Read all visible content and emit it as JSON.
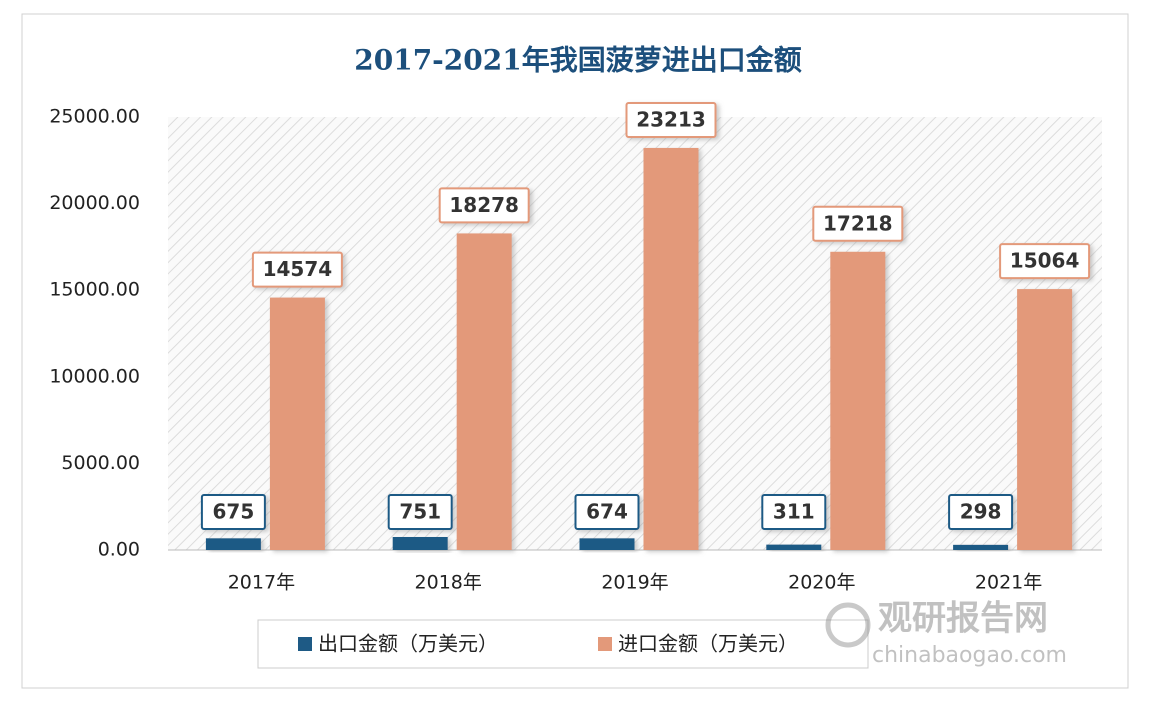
{
  "chart_data": {
    "type": "bar",
    "title": "2017-2021年我国菠萝进出口金额",
    "categories": [
      "2017年",
      "2018年",
      "2019年",
      "2020年",
      "2021年"
    ],
    "series": [
      {
        "name": "出口金额（万美元）",
        "color": "#1e5a85",
        "values": [
          675,
          751,
          674,
          311,
          298
        ]
      },
      {
        "name": "进口金额（万美元）",
        "color": "#e3997a",
        "values": [
          14574,
          18278,
          23213,
          17218,
          15064
        ]
      }
    ],
    "ylim": [
      0,
      25000
    ],
    "yticks": [
      {
        "value": 0,
        "label": "0.00"
      },
      {
        "value": 5000,
        "label": "5000.00"
      },
      {
        "value": 10000,
        "label": "10000.00"
      },
      {
        "value": 15000,
        "label": "15000.00"
      },
      {
        "value": 20000,
        "label": "20000.00"
      },
      {
        "value": 25000,
        "label": "25000.00"
      }
    ],
    "legend": "bottom",
    "watermark": {
      "name": "观研报告网",
      "url": "chinabaogao.com"
    }
  }
}
